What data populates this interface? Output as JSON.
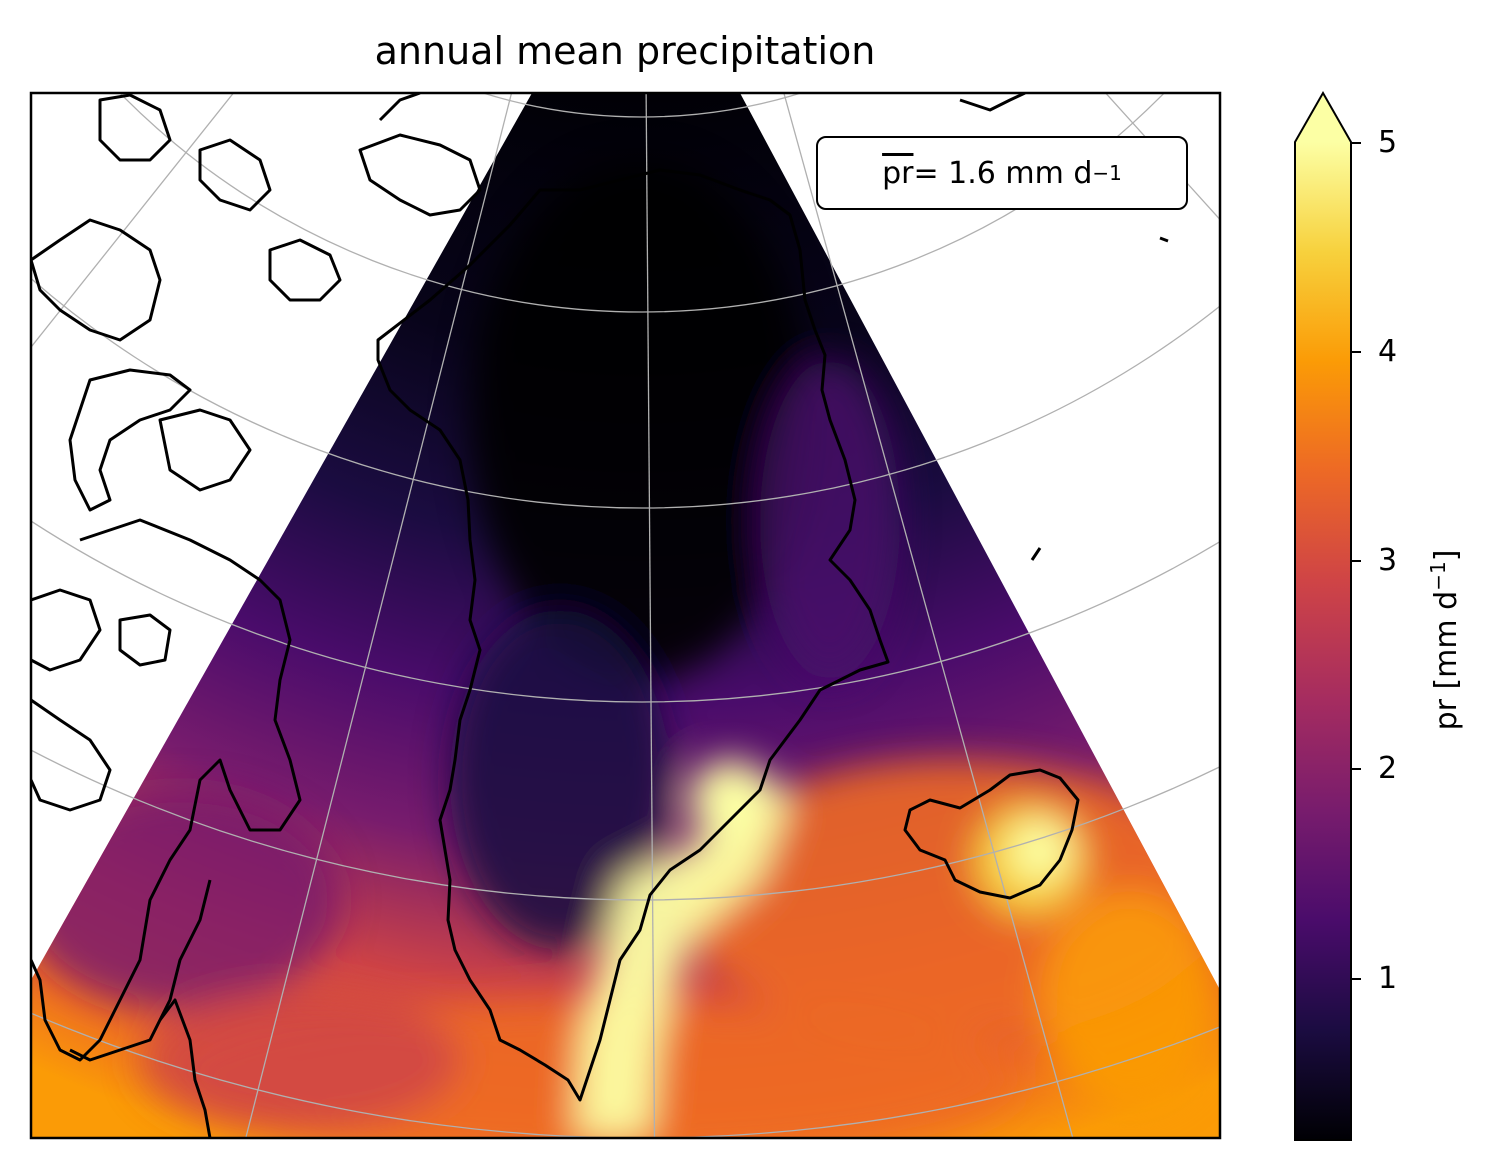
{
  "title": "annual mean precipitation",
  "annotation": {
    "var": "pr",
    "rest": " = 1.6 mm d",
    "exp": "−1"
  },
  "colorbar": {
    "label": "pr [mm d",
    "label_exp": "−1",
    "label_end": "]",
    "ticks": [
      "1",
      "2",
      "3",
      "4",
      "5"
    ],
    "vmin": 0.2,
    "vmax": 5,
    "extend": "max",
    "colormap": "inferno",
    "stops": [
      "#000004",
      "#1b0c41",
      "#4a0c6b",
      "#781c6d",
      "#a52c60",
      "#cf4446",
      "#ed6925",
      "#fb9b06",
      "#f7d13d",
      "#fcffa4"
    ]
  },
  "map": {
    "projection": "conic (Lambert-like), North Atlantic",
    "regions_shown": [
      "Greenland",
      "Iceland",
      "Canadian Arctic Archipelago",
      "Baffin Island"
    ],
    "field": "annual mean precipitation (pr)",
    "gridlines": "grey, shown",
    "coastlines": "black"
  }
}
